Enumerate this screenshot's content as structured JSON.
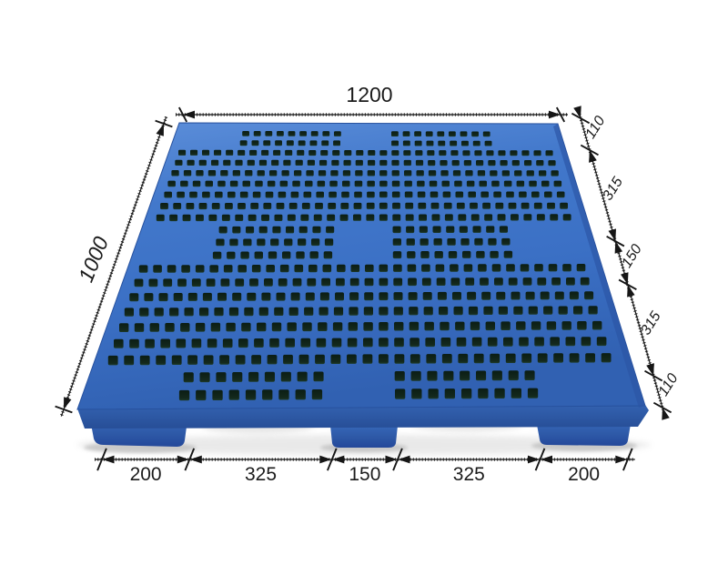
{
  "page": {
    "background": "#ffffff"
  },
  "diagram": {
    "subject": "blue plastic pallet perspective photo with dimension callouts",
    "dimensions": {
      "top_width": "1200",
      "left_depth": "1000",
      "right_segments": [
        "110",
        "315",
        "150",
        "315",
        "110"
      ],
      "bottom_segments": [
        "200",
        "325",
        "150",
        "325",
        "200"
      ]
    },
    "colors": {
      "background": "#ffffff",
      "pallet_light": "#5d8fda",
      "pallet_mid": "#3c72c7",
      "pallet_deep": "#3161b2",
      "pallet_dark": "#2b55a4",
      "foot_dark": "#24489a",
      "hole_dark": "#0b1d14",
      "hole_mid": "#1e3b2a",
      "edge": "#27519e",
      "line": "#161616",
      "text": "#1b1b1b",
      "shadow": "#bdbdbd"
    }
  }
}
